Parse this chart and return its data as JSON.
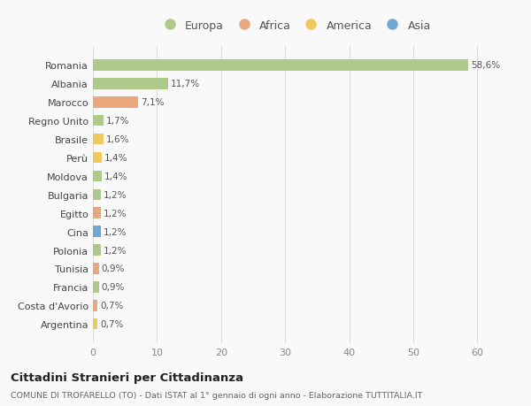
{
  "countries": [
    "Romania",
    "Albania",
    "Marocco",
    "Regno Unito",
    "Brasile",
    "Perù",
    "Moldova",
    "Bulgaria",
    "Egitto",
    "Cina",
    "Polonia",
    "Tunisia",
    "Francia",
    "Costa d'Avorio",
    "Argentina"
  ],
  "values": [
    58.6,
    11.7,
    7.1,
    1.7,
    1.6,
    1.4,
    1.4,
    1.2,
    1.2,
    1.2,
    1.2,
    0.9,
    0.9,
    0.7,
    0.7
  ],
  "labels": [
    "58,6%",
    "11,7%",
    "7,1%",
    "1,7%",
    "1,6%",
    "1,4%",
    "1,4%",
    "1,2%",
    "1,2%",
    "1,2%",
    "1,2%",
    "0,9%",
    "0,9%",
    "0,7%",
    "0,7%"
  ],
  "continents": [
    "Europa",
    "Europa",
    "Africa",
    "Europa",
    "America",
    "America",
    "Europa",
    "Europa",
    "Africa",
    "Asia",
    "Europa",
    "Africa",
    "Europa",
    "Africa",
    "America"
  ],
  "colors": {
    "Europa": "#aeca8a",
    "Africa": "#e8a87c",
    "America": "#f0c860",
    "Asia": "#6fa8d4"
  },
  "legend_order": [
    "Europa",
    "Africa",
    "America",
    "Asia"
  ],
  "title": "Cittadini Stranieri per Cittadinanza",
  "subtitle": "COMUNE DI TROFARELLO (TO) - Dati ISTAT al 1° gennaio di ogni anno - Elaborazione TUTTITALIA.IT",
  "xlim": [
    0,
    63
  ],
  "xticks": [
    0,
    10,
    20,
    30,
    40,
    50,
    60
  ],
  "background_color": "#f9f9f9",
  "grid_color": "#dddddd"
}
